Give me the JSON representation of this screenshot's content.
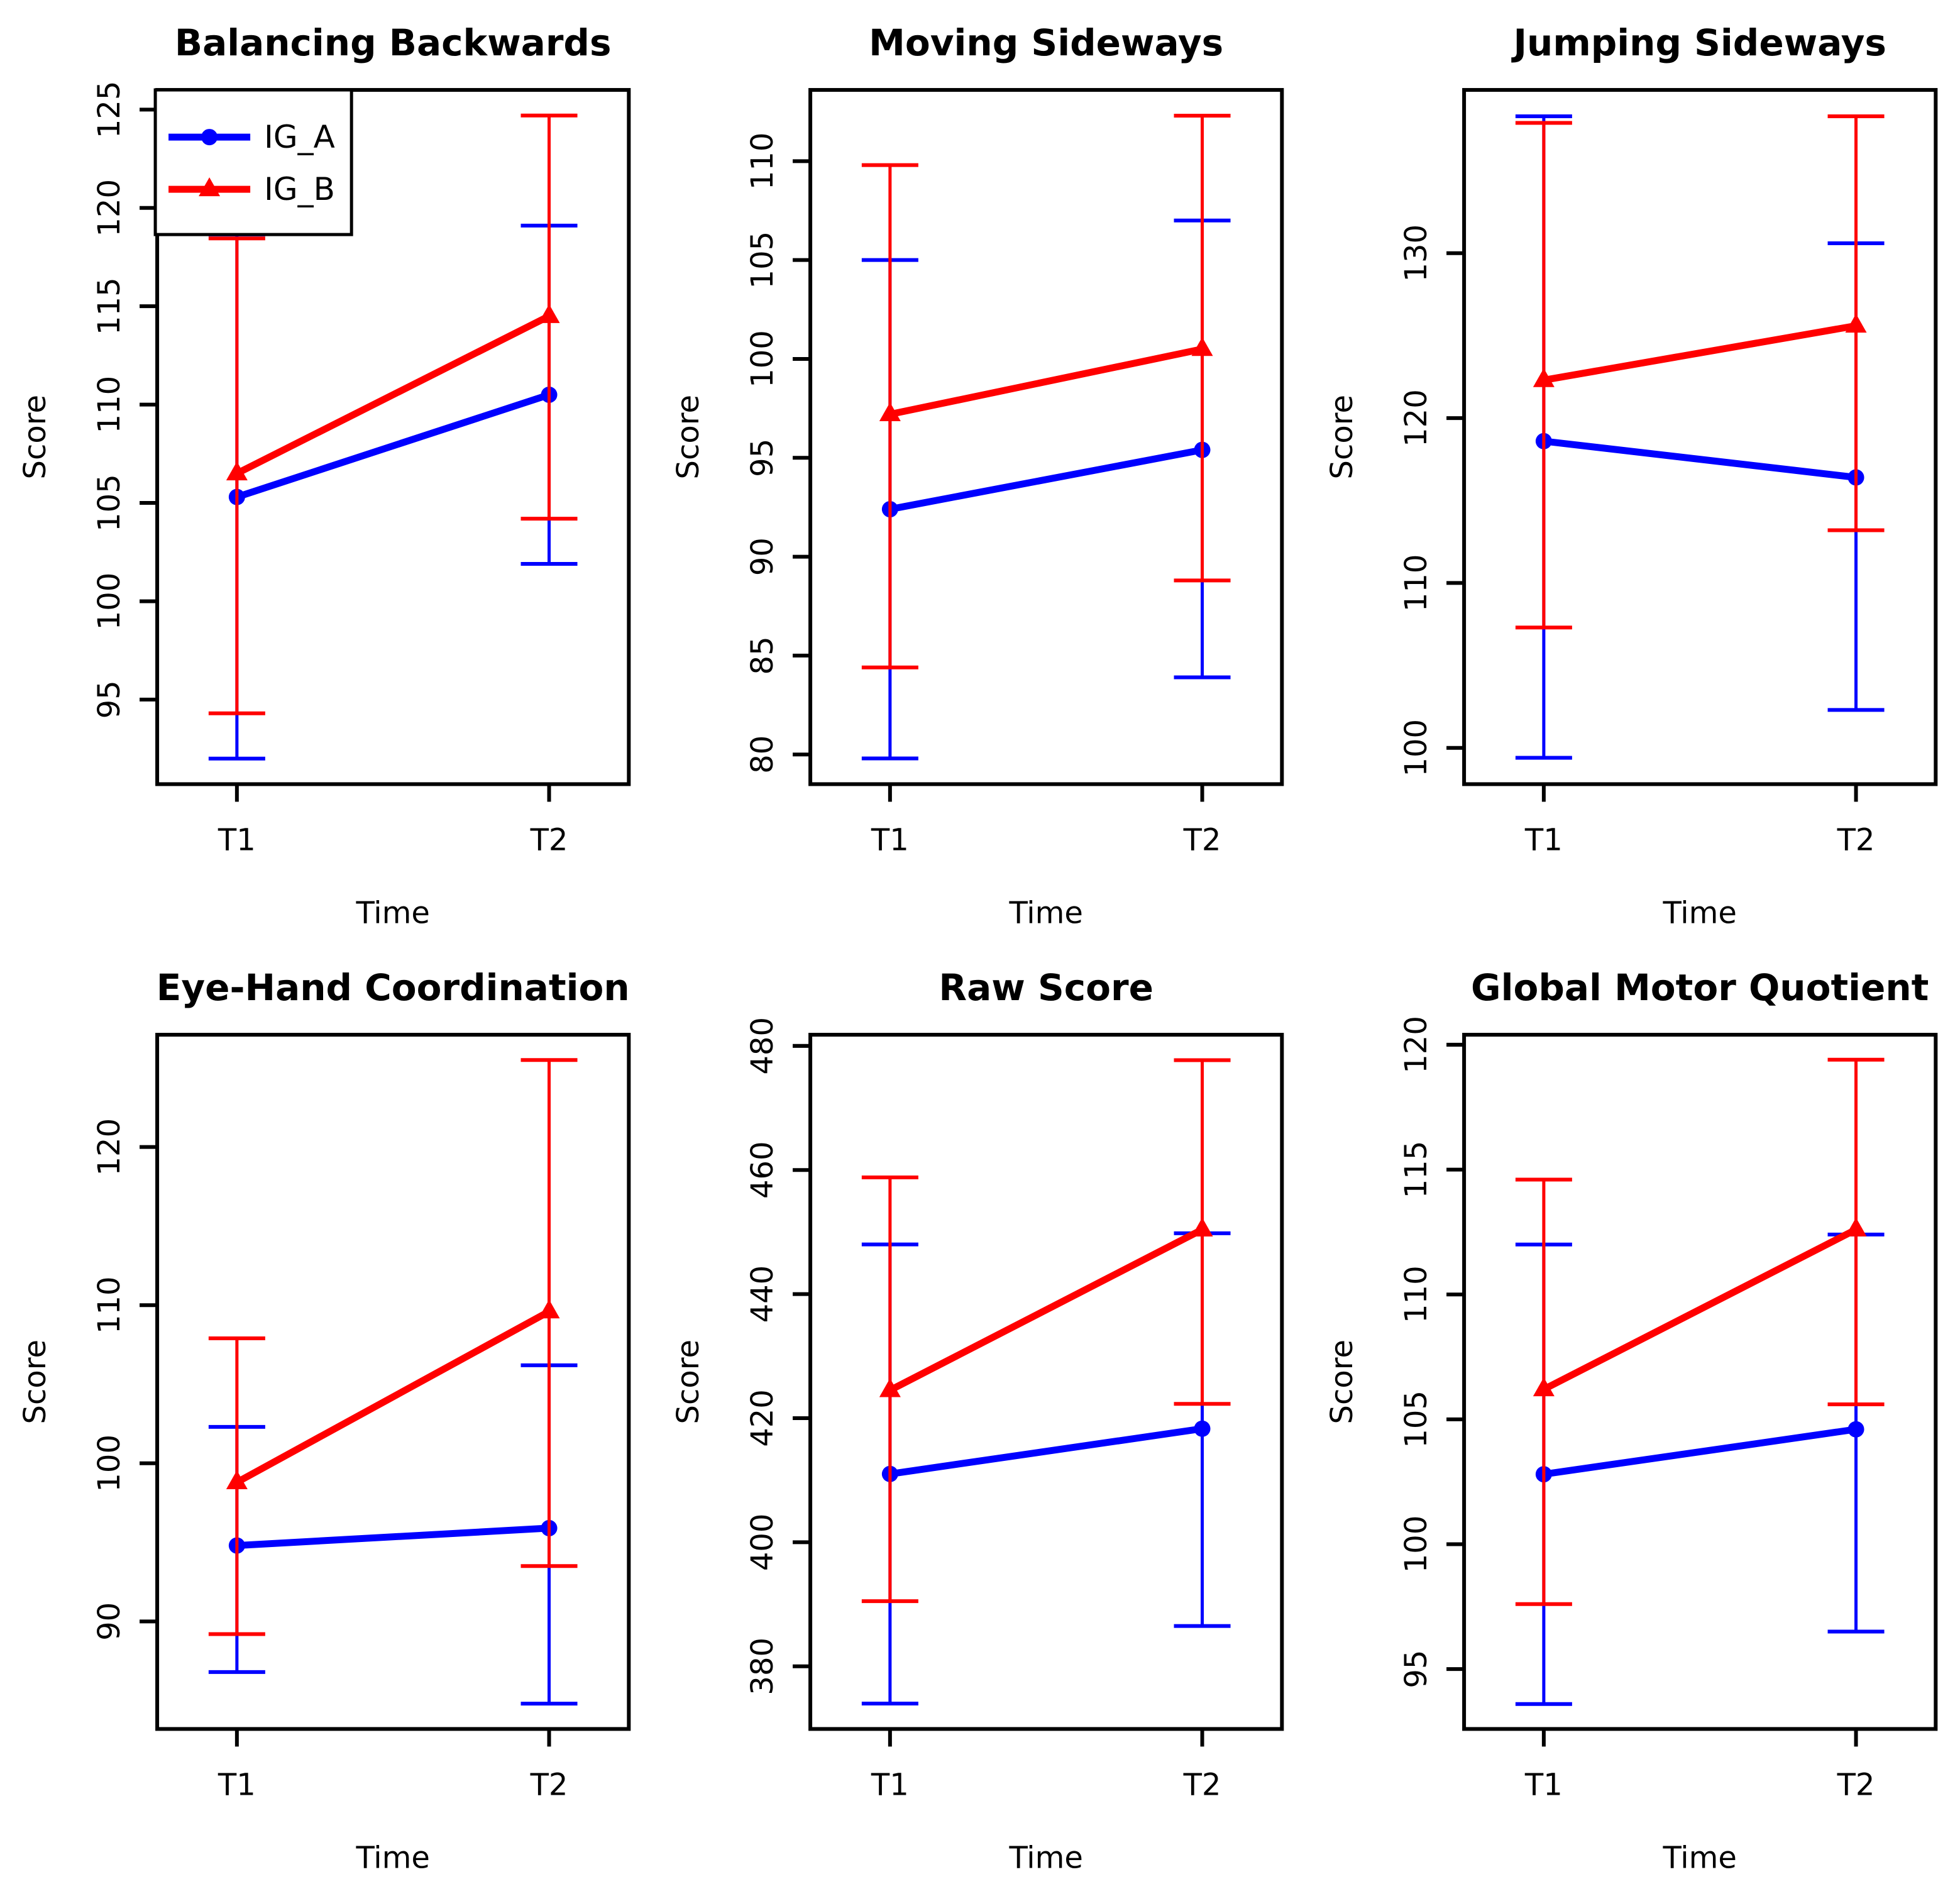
{
  "figure": {
    "background": "#ffffff",
    "frame_color": "#000000",
    "x_axis_label": "Time",
    "y_axis_label": "Score",
    "x_categories": [
      "T1",
      "T2"
    ]
  },
  "legend": {
    "position": "topleft",
    "entries": [
      {
        "label": "IG_A",
        "color": "#0000ff",
        "marker": "circle"
      },
      {
        "label": "IG_B",
        "color": "#ff0000",
        "marker": "triangle"
      }
    ]
  },
  "chart_data": [
    {
      "type": "line",
      "title": "Balancing Backwards",
      "xlabel": "Time",
      "ylabel": "Score",
      "categories": [
        "T1",
        "T2"
      ],
      "ylim": [
        90.7,
        126.0
      ],
      "yticks": [
        95,
        100,
        105,
        110,
        115,
        120,
        125
      ],
      "grid": false,
      "legend": true,
      "series": [
        {
          "name": "IG_A",
          "color": "#0000ff",
          "marker": "circle",
          "values": [
            105.3,
            110.5
          ],
          "err_low": [
            92.0,
            101.9
          ],
          "err_high": [
            118.65,
            119.1
          ]
        },
        {
          "name": "IG_B",
          "color": "#ff0000",
          "marker": "triangle",
          "values": [
            106.5,
            114.5
          ],
          "err_low": [
            94.3,
            104.2
          ],
          "err_high": [
            118.45,
            124.7
          ]
        }
      ]
    },
    {
      "type": "line",
      "title": "Moving Sideways",
      "xlabel": "Time",
      "ylabel": "Score",
      "categories": [
        "T1",
        "T2"
      ],
      "ylim": [
        78.5,
        113.6
      ],
      "yticks": [
        80,
        85,
        90,
        95,
        100,
        105,
        110
      ],
      "grid": false,
      "legend": false,
      "series": [
        {
          "name": "IG_A",
          "color": "#0000ff",
          "marker": "circle",
          "values": [
            92.4,
            95.4
          ],
          "err_low": [
            79.8,
            83.9
          ],
          "err_high": [
            105.0,
            107.0
          ]
        },
        {
          "name": "IG_B",
          "color": "#ff0000",
          "marker": "triangle",
          "values": [
            97.2,
            100.5
          ],
          "err_low": [
            84.4,
            88.8
          ],
          "err_high": [
            109.8,
            112.3
          ]
        }
      ]
    },
    {
      "type": "line",
      "title": "Jumping Sideways",
      "xlabel": "Time",
      "ylabel": "Score",
      "categories": [
        "T1",
        "T2"
      ],
      "ylim": [
        97.8,
        139.9
      ],
      "yticks": [
        100,
        110,
        120,
        130
      ],
      "grid": false,
      "legend": false,
      "series": [
        {
          "name": "IG_A",
          "color": "#0000ff",
          "marker": "circle",
          "values": [
            118.6,
            116.4
          ],
          "err_low": [
            99.4,
            102.3
          ],
          "err_high": [
            138.3,
            130.6
          ]
        },
        {
          "name": "IG_B",
          "color": "#ff0000",
          "marker": "triangle",
          "values": [
            122.3,
            125.6
          ],
          "err_low": [
            107.3,
            113.2
          ],
          "err_high": [
            137.9,
            138.3
          ]
        }
      ]
    },
    {
      "type": "line",
      "title": "Eye-Hand Coordination",
      "xlabel": "Time",
      "ylabel": "Score",
      "categories": [
        "T1",
        "T2"
      ],
      "ylim": [
        83.2,
        127.1
      ],
      "yticks": [
        90,
        100,
        110,
        120
      ],
      "grid": false,
      "legend": false,
      "series": [
        {
          "name": "IG_A",
          "color": "#0000ff",
          "marker": "circle",
          "values": [
            94.8,
            95.9
          ],
          "err_low": [
            86.8,
            84.8
          ],
          "err_high": [
            102.3,
            106.2
          ]
        },
        {
          "name": "IG_B",
          "color": "#ff0000",
          "marker": "triangle",
          "values": [
            98.8,
            109.6
          ],
          "err_low": [
            89.2,
            93.5
          ],
          "err_high": [
            107.9,
            125.5
          ]
        }
      ]
    },
    {
      "type": "line",
      "title": "Raw Score",
      "xlabel": "Time",
      "ylabel": "Score",
      "categories": [
        "T1",
        "T2"
      ],
      "ylim": [
        369.9,
        481.8
      ],
      "yticks": [
        380,
        400,
        420,
        440,
        460,
        480
      ],
      "grid": false,
      "legend": false,
      "series": [
        {
          "name": "IG_A",
          "color": "#0000ff",
          "marker": "circle",
          "values": [
            411.0,
            418.3
          ],
          "err_low": [
            374.0,
            386.5
          ],
          "err_high": [
            448.0,
            449.8
          ]
        },
        {
          "name": "IG_B",
          "color": "#ff0000",
          "marker": "triangle",
          "values": [
            424.5,
            450.4
          ],
          "err_low": [
            390.5,
            422.3
          ],
          "err_high": [
            458.8,
            477.7
          ]
        }
      ]
    },
    {
      "type": "line",
      "title": "Global Motor Quotient",
      "xlabel": "Time",
      "ylabel": "Score",
      "categories": [
        "T1",
        "T2"
      ],
      "ylim": [
        92.6,
        120.4
      ],
      "yticks": [
        95,
        100,
        105,
        110,
        115,
        120
      ],
      "grid": false,
      "legend": false,
      "series": [
        {
          "name": "IG_A",
          "color": "#0000ff",
          "marker": "circle",
          "values": [
            102.8,
            104.6
          ],
          "err_low": [
            93.6,
            96.5
          ],
          "err_high": [
            112.0,
            112.4
          ]
        },
        {
          "name": "IG_B",
          "color": "#ff0000",
          "marker": "triangle",
          "values": [
            106.2,
            112.6
          ],
          "err_low": [
            97.6,
            105.6
          ],
          "err_high": [
            114.6,
            119.4
          ]
        }
      ]
    }
  ]
}
